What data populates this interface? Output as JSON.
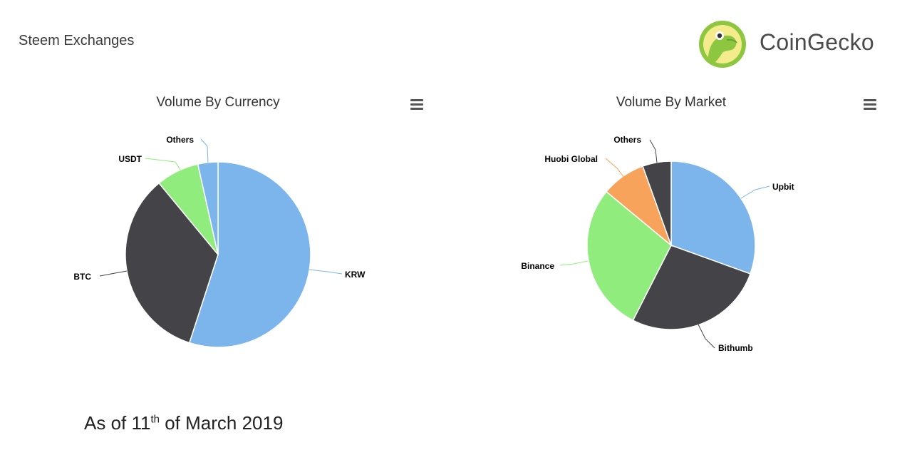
{
  "page": {
    "title": "Steem Exchanges",
    "footnote": {
      "prefix": "As of 11",
      "suffix": "th",
      "rest": " of March 2019"
    }
  },
  "logo": {
    "text": "CoinGecko",
    "icon": "gecko-logo-icon"
  },
  "colors": {
    "blue": "#7cb5ec",
    "dark": "#434348",
    "green": "#90ed7d",
    "orange": "#f7a35c"
  },
  "chart_data": [
    {
      "type": "pie",
      "title": "Volume By Currency",
      "menu_icon": "hamburger-menu-icon",
      "slices": [
        {
          "label": "KRW",
          "value": 55.0,
          "color": "#7cb5ec"
        },
        {
          "label": "BTC",
          "value": 34.0,
          "color": "#434348"
        },
        {
          "label": "USDT",
          "value": 7.5,
          "color": "#90ed7d"
        },
        {
          "label": "Others",
          "value": 3.5,
          "color": "#7cb5ec"
        }
      ]
    },
    {
      "type": "pie",
      "title": "Volume By Market",
      "menu_icon": "hamburger-menu-icon",
      "slices": [
        {
          "label": "Upbit",
          "value": 30.5,
          "color": "#7cb5ec"
        },
        {
          "label": "Bithumb",
          "value": 27.0,
          "color": "#434348"
        },
        {
          "label": "Binance",
          "value": 28.5,
          "color": "#90ed7d"
        },
        {
          "label": "Huobi Global",
          "value": 8.5,
          "color": "#f7a35c"
        },
        {
          "label": "Others",
          "value": 5.5,
          "color": "#434348"
        }
      ]
    }
  ]
}
